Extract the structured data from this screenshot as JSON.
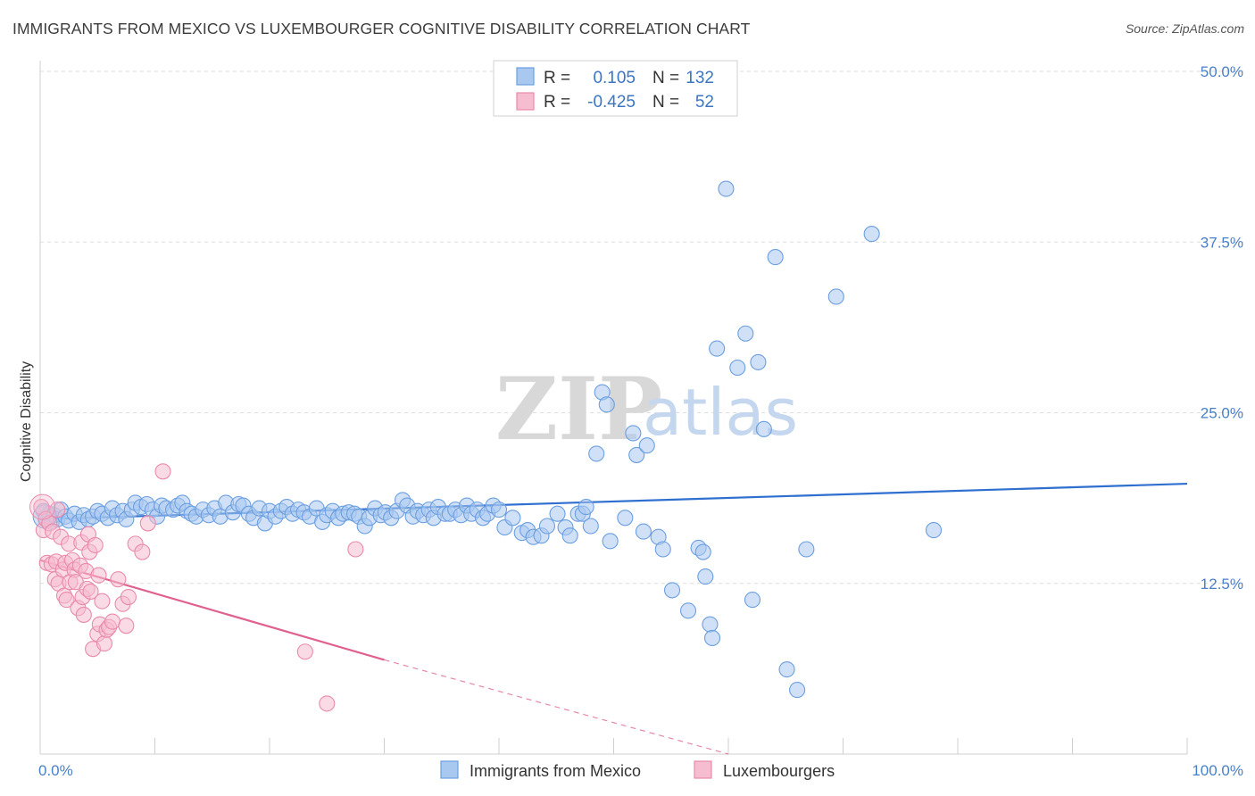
{
  "title": "IMMIGRANTS FROM MEXICO VS LUXEMBOURGER COGNITIVE DISABILITY CORRELATION CHART",
  "source": "Source: ZipAtlas.com",
  "watermark": {
    "zip": "ZIP",
    "atlas": "atlas"
  },
  "legend_box": {
    "rows": [
      {
        "r_label": "R =",
        "r_value": "0.105",
        "n_label": "N =",
        "n_value": "132",
        "color": "#a9c8f0"
      },
      {
        "r_label": "R =",
        "r_value": "-0.425",
        "n_label": "N =",
        "n_value": "52",
        "color": "#f6bcd0"
      }
    ]
  },
  "bottom_legend": [
    "Immigrants from Mexico",
    "Luxembourgers"
  ],
  "chart_data": {
    "type": "scatter",
    "xlabel": "",
    "ylabel": "Cognitive Disability",
    "xlim": [
      0,
      100
    ],
    "ylim": [
      0,
      50
    ],
    "x_tick_labels": [
      "0.0%",
      "100.0%"
    ],
    "y_ticks": [
      12.5,
      25.0,
      37.5,
      50.0
    ],
    "y_tick_labels": [
      "12.5%",
      "25.0%",
      "37.5%",
      "50.0%"
    ],
    "grid": true,
    "legend_position": "top-center",
    "series": [
      {
        "name": "Immigrants from Mexico",
        "color": "#6b9fe0",
        "fill": "#a9c8f0",
        "trend": {
          "x": [
            0,
            100
          ],
          "y": [
            17.2,
            19.8
          ],
          "color": "#2e6fcf"
        },
        "points": [
          [
            0.3,
            17.8
          ],
          [
            0.5,
            17.3
          ],
          [
            0.8,
            17.6
          ],
          [
            1.0,
            17.0
          ],
          [
            1.2,
            17.5
          ],
          [
            1.5,
            17.2
          ],
          [
            1.8,
            17.9
          ],
          [
            2.2,
            17.4
          ],
          [
            2.5,
            17.1
          ],
          [
            3.0,
            17.6
          ],
          [
            3.4,
            17.0
          ],
          [
            3.8,
            17.5
          ],
          [
            4.2,
            17.2
          ],
          [
            4.6,
            17.4
          ],
          [
            5.0,
            17.8
          ],
          [
            5.4,
            17.6
          ],
          [
            5.9,
            17.3
          ],
          [
            6.3,
            18.0
          ],
          [
            6.7,
            17.5
          ],
          [
            7.2,
            17.8
          ],
          [
            7.5,
            17.2
          ],
          [
            8.0,
            17.9
          ],
          [
            8.3,
            18.4
          ],
          [
            8.8,
            18.1
          ],
          [
            9.3,
            18.3
          ],
          [
            9.8,
            17.9
          ],
          [
            10.2,
            17.4
          ],
          [
            10.6,
            18.2
          ],
          [
            11.0,
            18.0
          ],
          [
            11.6,
            17.9
          ],
          [
            12.0,
            18.2
          ],
          [
            12.4,
            18.4
          ],
          [
            12.8,
            17.8
          ],
          [
            13.2,
            17.6
          ],
          [
            13.6,
            17.4
          ],
          [
            14.2,
            17.9
          ],
          [
            14.7,
            17.5
          ],
          [
            15.2,
            18.0
          ],
          [
            15.7,
            17.4
          ],
          [
            16.2,
            18.4
          ],
          [
            16.8,
            17.7
          ],
          [
            17.3,
            18.3
          ],
          [
            17.7,
            18.2
          ],
          [
            18.2,
            17.6
          ],
          [
            18.6,
            17.3
          ],
          [
            19.1,
            18.0
          ],
          [
            19.6,
            16.9
          ],
          [
            20.0,
            17.8
          ],
          [
            20.5,
            17.4
          ],
          [
            21.0,
            17.8
          ],
          [
            21.5,
            18.1
          ],
          [
            22.0,
            17.6
          ],
          [
            22.5,
            17.9
          ],
          [
            23.0,
            17.7
          ],
          [
            23.5,
            17.4
          ],
          [
            24.1,
            18.0
          ],
          [
            24.6,
            17.0
          ],
          [
            25.0,
            17.5
          ],
          [
            25.5,
            17.8
          ],
          [
            26.0,
            17.3
          ],
          [
            26.4,
            17.6
          ],
          [
            26.9,
            17.7
          ],
          [
            27.4,
            17.6
          ],
          [
            27.8,
            17.4
          ],
          [
            28.3,
            16.7
          ],
          [
            28.7,
            17.3
          ],
          [
            29.2,
            18.0
          ],
          [
            29.7,
            17.5
          ],
          [
            30.1,
            17.7
          ],
          [
            30.6,
            17.3
          ],
          [
            31.1,
            17.8
          ],
          [
            31.6,
            18.6
          ],
          [
            32.0,
            18.2
          ],
          [
            32.5,
            17.4
          ],
          [
            32.9,
            17.8
          ],
          [
            33.4,
            17.5
          ],
          [
            33.9,
            17.9
          ],
          [
            34.3,
            17.3
          ],
          [
            34.7,
            18.1
          ],
          [
            35.3,
            17.6
          ],
          [
            35.7,
            17.6
          ],
          [
            36.2,
            17.9
          ],
          [
            36.7,
            17.5
          ],
          [
            37.2,
            18.2
          ],
          [
            37.6,
            17.6
          ],
          [
            38.1,
            17.9
          ],
          [
            38.6,
            17.3
          ],
          [
            39.0,
            17.6
          ],
          [
            39.5,
            18.2
          ],
          [
            40.0,
            17.9
          ],
          [
            40.5,
            16.6
          ],
          [
            41.2,
            17.3
          ],
          [
            42.0,
            16.2
          ],
          [
            42.5,
            16.4
          ],
          [
            43.0,
            15.9
          ],
          [
            43.7,
            16.0
          ],
          [
            44.2,
            16.7
          ],
          [
            45.1,
            17.6
          ],
          [
            45.8,
            16.6
          ],
          [
            46.2,
            16.0
          ],
          [
            46.9,
            17.6
          ],
          [
            47.3,
            17.6
          ],
          [
            47.6,
            18.1
          ],
          [
            48.0,
            16.7
          ],
          [
            48.5,
            22.0
          ],
          [
            49.0,
            26.5
          ],
          [
            49.4,
            25.6
          ],
          [
            49.7,
            15.6
          ],
          [
            51.0,
            17.3
          ],
          [
            51.7,
            23.5
          ],
          [
            52.0,
            21.9
          ],
          [
            52.6,
            16.3
          ],
          [
            52.9,
            22.6
          ],
          [
            53.9,
            15.9
          ],
          [
            54.3,
            15.0
          ],
          [
            55.1,
            12.0
          ],
          [
            56.5,
            10.5
          ],
          [
            57.4,
            15.1
          ],
          [
            57.8,
            14.8
          ],
          [
            58.0,
            13.0
          ],
          [
            58.4,
            9.5
          ],
          [
            58.6,
            8.5
          ],
          [
            59.0,
            29.7
          ],
          [
            59.8,
            41.4
          ],
          [
            60.8,
            28.3
          ],
          [
            61.5,
            30.8
          ],
          [
            62.1,
            11.3
          ],
          [
            62.6,
            28.7
          ],
          [
            63.1,
            23.8
          ],
          [
            64.1,
            36.4
          ],
          [
            65.1,
            6.2
          ],
          [
            66.0,
            4.7
          ],
          [
            66.8,
            15.0
          ],
          [
            69.4,
            33.5
          ],
          [
            72.5,
            38.1
          ],
          [
            77.9,
            16.4
          ]
        ]
      },
      {
        "name": "Luxembourgers",
        "color": "#e98bab",
        "fill": "#f6bcd0",
        "trend": {
          "x": [
            0,
            30
          ],
          "y": [
            14.2,
            6.9
          ],
          "color": "#e0608e",
          "dashed_extension": {
            "x": [
              30,
              60
            ],
            "y": [
              6.9,
              0.0
            ]
          }
        },
        "points": [
          [
            0.1,
            18.1
          ],
          [
            0.3,
            16.4
          ],
          [
            0.5,
            17.2
          ],
          [
            0.6,
            14.0
          ],
          [
            0.8,
            16.9
          ],
          [
            1.0,
            13.9
          ],
          [
            1.1,
            16.3
          ],
          [
            1.3,
            12.8
          ],
          [
            1.4,
            14.1
          ],
          [
            1.5,
            17.9
          ],
          [
            1.6,
            12.5
          ],
          [
            1.8,
            15.9
          ],
          [
            2.0,
            13.5
          ],
          [
            2.1,
            11.6
          ],
          [
            2.2,
            14.0
          ],
          [
            2.3,
            11.3
          ],
          [
            2.5,
            15.4
          ],
          [
            2.6,
            12.6
          ],
          [
            2.8,
            14.2
          ],
          [
            3.0,
            13.5
          ],
          [
            3.1,
            12.6
          ],
          [
            3.3,
            10.7
          ],
          [
            3.5,
            13.8
          ],
          [
            3.6,
            15.5
          ],
          [
            3.7,
            11.5
          ],
          [
            3.8,
            10.2
          ],
          [
            4.0,
            13.4
          ],
          [
            4.1,
            12.1
          ],
          [
            4.2,
            16.1
          ],
          [
            4.3,
            14.8
          ],
          [
            4.4,
            11.9
          ],
          [
            4.6,
            7.7
          ],
          [
            4.8,
            15.3
          ],
          [
            5.0,
            8.8
          ],
          [
            5.1,
            13.1
          ],
          [
            5.2,
            9.5
          ],
          [
            5.4,
            11.2
          ],
          [
            5.6,
            8.1
          ],
          [
            5.8,
            9.1
          ],
          [
            6.0,
            9.3
          ],
          [
            6.3,
            9.7
          ],
          [
            6.8,
            12.8
          ],
          [
            7.2,
            11.0
          ],
          [
            7.5,
            9.4
          ],
          [
            7.7,
            11.5
          ],
          [
            8.3,
            15.4
          ],
          [
            8.9,
            14.8
          ],
          [
            9.4,
            16.9
          ],
          [
            10.7,
            20.7
          ],
          [
            23.1,
            7.5
          ],
          [
            25.0,
            3.7
          ],
          [
            27.5,
            15.0
          ]
        ]
      }
    ]
  }
}
